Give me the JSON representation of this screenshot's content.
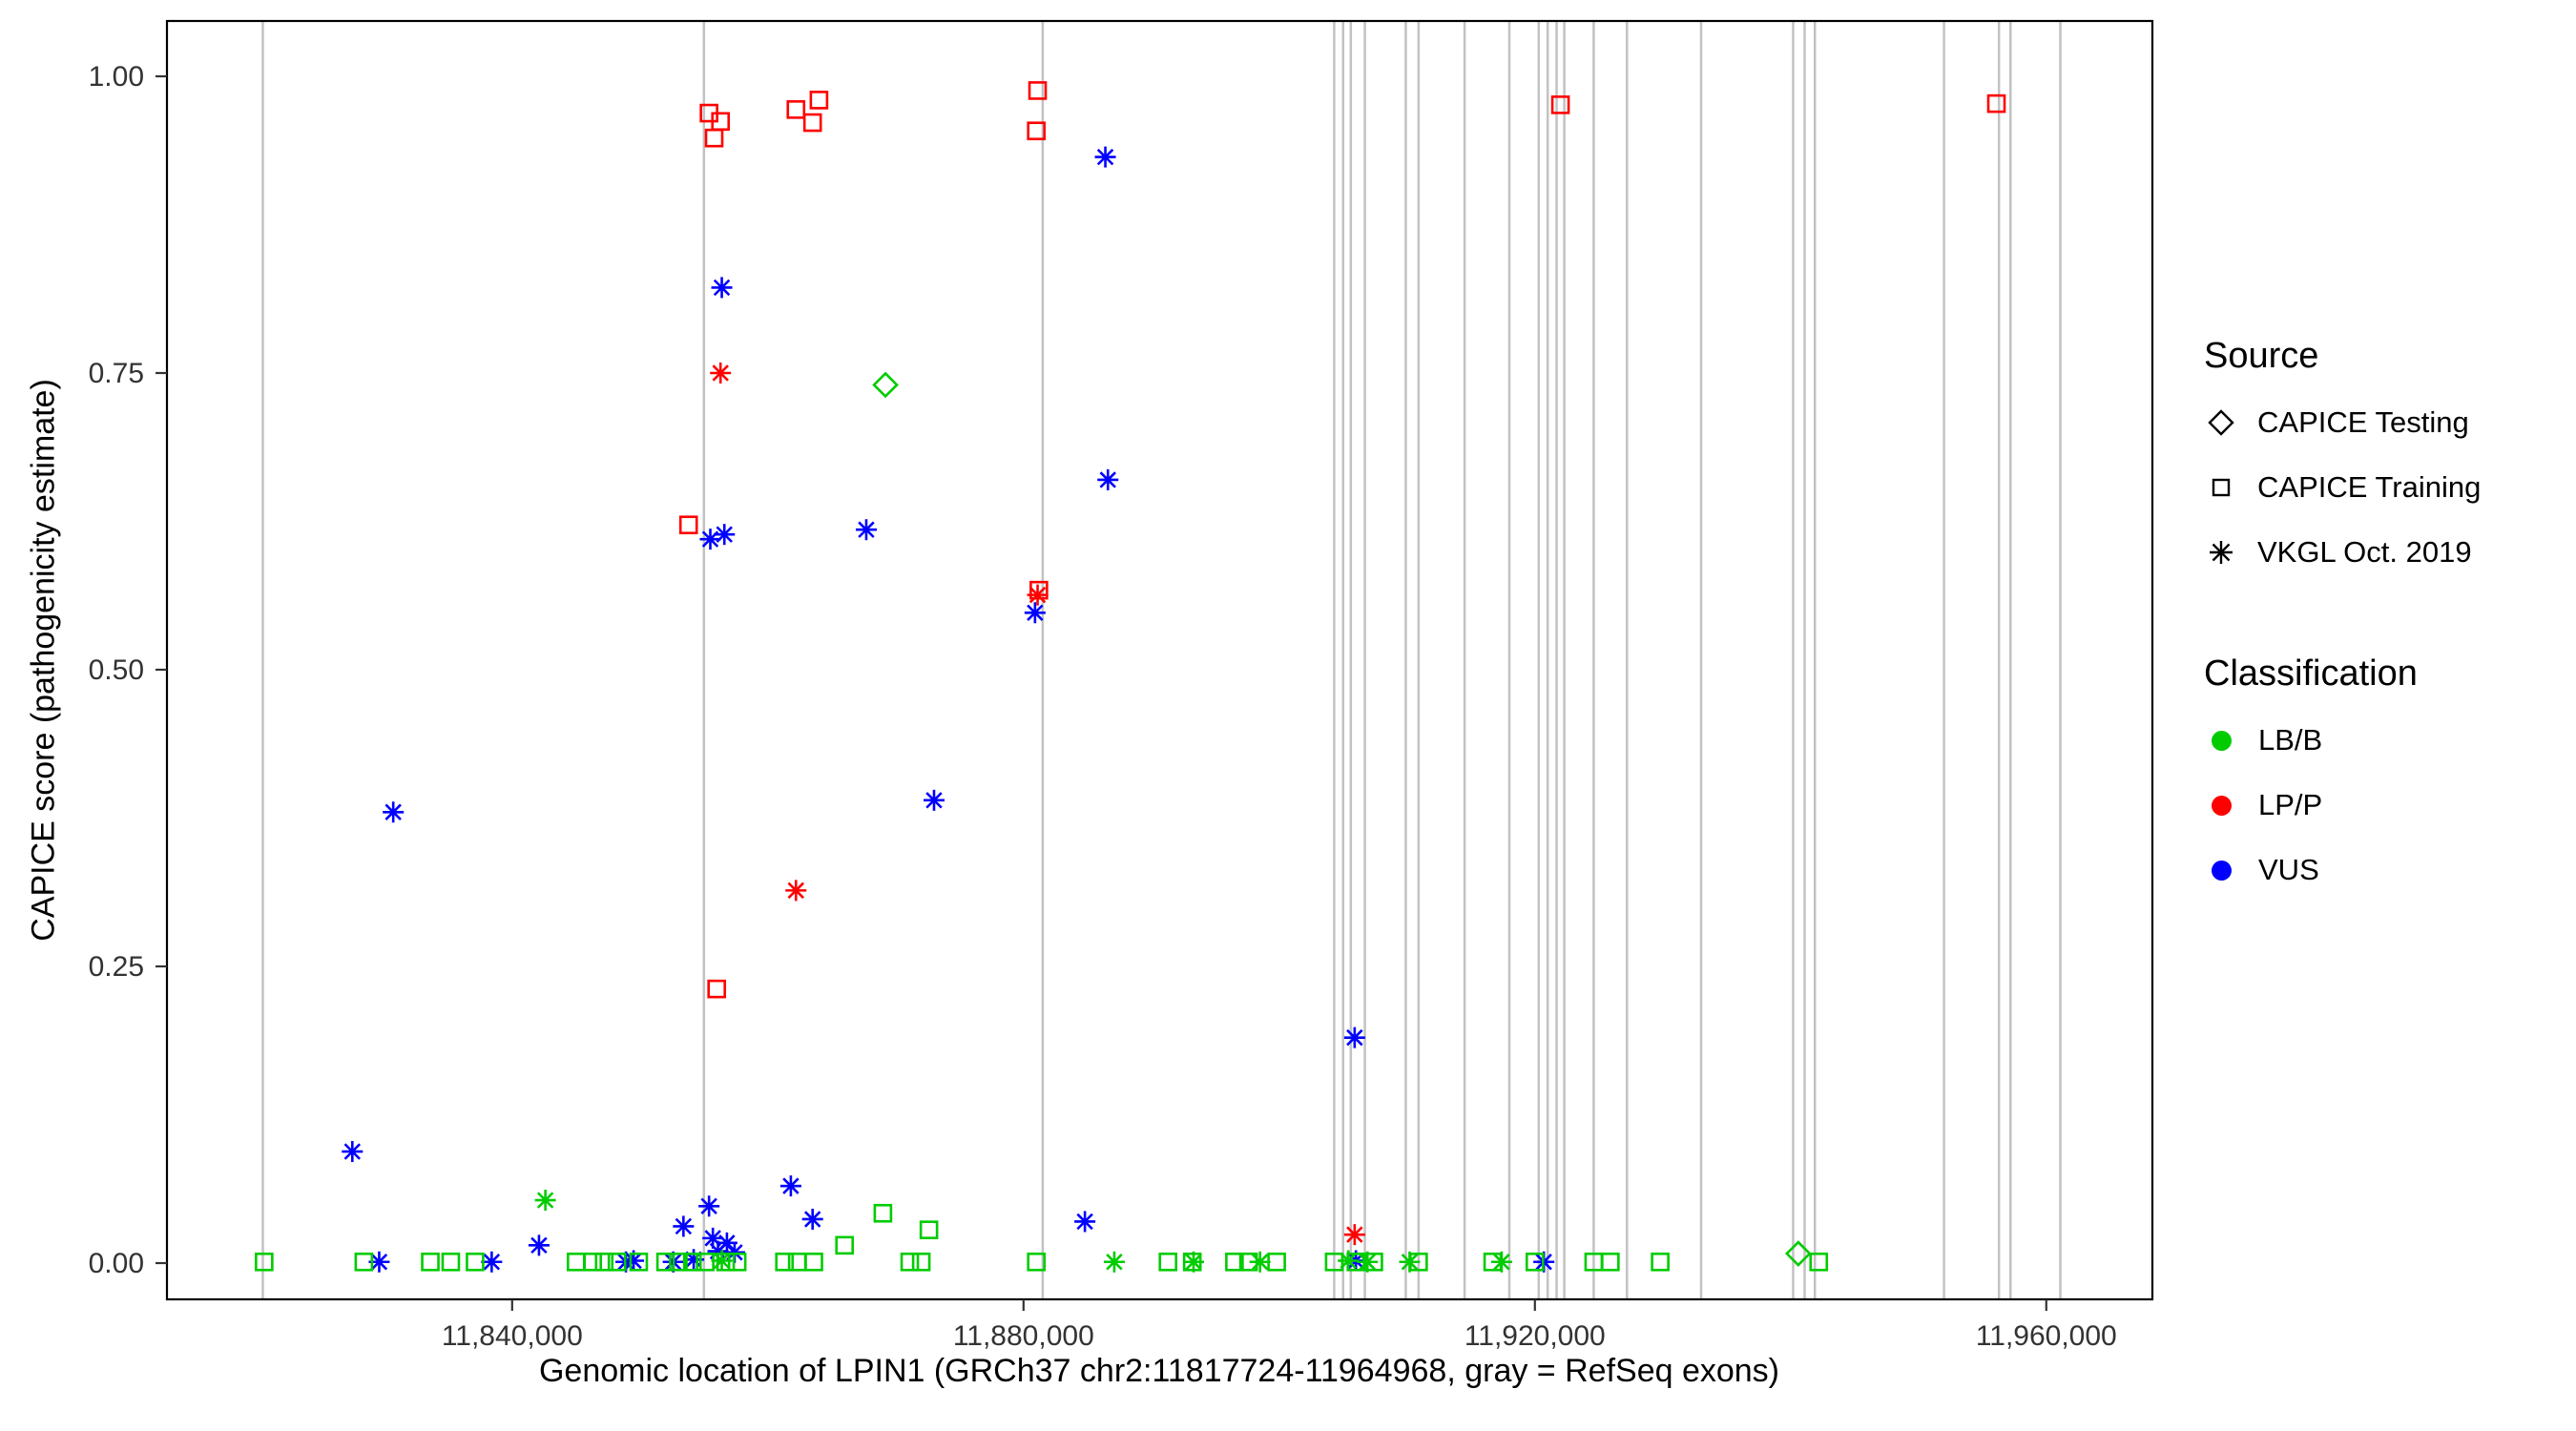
{
  "chart_data": {
    "type": "scatter",
    "title": "",
    "xlabel": "Genomic location of LPIN1 (GRCh37 chr2:11817724-11964968, gray = RefSeq exons)",
    "ylabel": "CAPICE score (pathogenicity estimate)",
    "xlim": [
      11813000,
      11968300
    ],
    "ylim": [
      0,
      1
    ],
    "grid": "off",
    "legend_position": "right",
    "x_ticks": [
      {
        "value": 11840000,
        "label": "11,840,000"
      },
      {
        "value": 11880000,
        "label": "11,880,000"
      },
      {
        "value": 11920000,
        "label": "11,920,000"
      },
      {
        "value": 11960000,
        "label": "11,960,000"
      }
    ],
    "y_ticks": [
      {
        "value": 0.0,
        "label": "0.00"
      },
      {
        "value": 0.25,
        "label": "0.25"
      },
      {
        "value": 0.5,
        "label": "0.50"
      },
      {
        "value": 0.75,
        "label": "0.75"
      },
      {
        "value": 1.0,
        "label": "1.00"
      }
    ],
    "exon_color": "#c2c2c2",
    "exons_x": [
      11820500,
      11855000,
      11881500,
      11904300,
      11905000,
      11905600,
      11906700,
      11909900,
      11910900,
      11914500,
      11918000,
      11920300,
      11921000,
      11921700,
      11922300,
      11924600,
      11927200,
      11933000,
      11940200,
      11941100,
      11941900,
      11952000,
      11956300,
      11957200,
      11961100
    ],
    "classification_colors": {
      "LB/B": "#00cc00",
      "LP/P": "#ff0000",
      "VUS": "#0000ff"
    },
    "shape_by_source": {
      "CAPICE Testing": "diamond",
      "CAPICE Training": "square",
      "VKGL Oct. 2019": "asterisk"
    },
    "series": [
      {
        "source": "CAPICE Training",
        "class": "LP/P",
        "points": [
          [
            11855400,
            0.969
          ],
          [
            11856300,
            0.962
          ],
          [
            11855800,
            0.948
          ],
          [
            11862200,
            0.972
          ],
          [
            11864000,
            0.98
          ],
          [
            11863500,
            0.961
          ],
          [
            11881100,
            0.988
          ],
          [
            11881000,
            0.954
          ],
          [
            11922000,
            0.976
          ],
          [
            11956100,
            0.977
          ],
          [
            11853800,
            0.622
          ],
          [
            11881200,
            0.567
          ],
          [
            11856000,
            0.231
          ]
        ]
      },
      {
        "source": "VKGL Oct. 2019",
        "class": "LP/P",
        "points": [
          [
            11856300,
            0.75
          ],
          [
            11862200,
            0.314
          ],
          [
            11881100,
            0.563
          ],
          [
            11905900,
            0.024
          ]
        ]
      },
      {
        "source": "CAPICE Testing",
        "class": "LB/B",
        "points": [
          [
            11869200,
            0.74
          ],
          [
            11940600,
            0.008
          ]
        ]
      },
      {
        "source": "VKGL Oct. 2019",
        "class": "VUS",
        "points": [
          [
            11856400,
            0.822
          ],
          [
            11886400,
            0.932
          ],
          [
            11886600,
            0.66
          ],
          [
            11867700,
            0.618
          ],
          [
            11855500,
            0.61
          ],
          [
            11856600,
            0.614
          ],
          [
            11880900,
            0.548
          ],
          [
            11873000,
            0.39
          ],
          [
            11830700,
            0.38
          ],
          [
            11905900,
            0.19
          ],
          [
            11827500,
            0.094
          ],
          [
            11861800,
            0.065
          ],
          [
            11855400,
            0.048
          ],
          [
            11863500,
            0.037
          ],
          [
            11884800,
            0.035
          ],
          [
            11853400,
            0.031
          ],
          [
            11855700,
            0.021
          ],
          [
            11856800,
            0.017
          ],
          [
            11842100,
            0.015
          ],
          [
            11856100,
            0.01
          ],
          [
            11857400,
            0.009
          ],
          [
            11829600,
            0.001
          ],
          [
            11838400,
            0.001
          ],
          [
            11848900,
            0.001
          ],
          [
            11849500,
            0.002
          ],
          [
            11852600,
            0.001
          ],
          [
            11854200,
            0.003
          ],
          [
            11906000,
            0.002
          ],
          [
            11920700,
            0.001
          ]
        ]
      },
      {
        "source": "VKGL Oct. 2019",
        "class": "LB/B",
        "points": [
          [
            11842600,
            0.053
          ],
          [
            11856400,
            0.002
          ],
          [
            11887100,
            0.001
          ],
          [
            11893300,
            0.001
          ],
          [
            11898500,
            0.001
          ],
          [
            11905400,
            0.002
          ],
          [
            11906900,
            0.001
          ],
          [
            11910200,
            0.001
          ],
          [
            11917400,
            0.001
          ]
        ]
      },
      {
        "source": "CAPICE Training",
        "class": "LB/B",
        "points": [
          [
            11869000,
            0.042
          ],
          [
            11872600,
            0.028
          ],
          [
            11866000,
            0.015
          ],
          [
            11820600,
            0.001
          ],
          [
            11828400,
            0.001
          ],
          [
            11833600,
            0.001
          ],
          [
            11835200,
            0.001
          ],
          [
            11837100,
            0.001
          ],
          [
            11845000,
            0.001
          ],
          [
            11846300,
            0.001
          ],
          [
            11847200,
            0.001
          ],
          [
            11848200,
            0.001
          ],
          [
            11849900,
            0.001
          ],
          [
            11852000,
            0.001
          ],
          [
            11853000,
            0.001
          ],
          [
            11854100,
            0.001
          ],
          [
            11855100,
            0.001
          ],
          [
            11856700,
            0.001
          ],
          [
            11857600,
            0.001
          ],
          [
            11861300,
            0.001
          ],
          [
            11862300,
            0.001
          ],
          [
            11863600,
            0.001
          ],
          [
            11871100,
            0.001
          ],
          [
            11872000,
            0.001
          ],
          [
            11881000,
            0.001
          ],
          [
            11891300,
            0.001
          ],
          [
            11893200,
            0.001
          ],
          [
            11896500,
            0.001
          ],
          [
            11897600,
            0.001
          ],
          [
            11899800,
            0.001
          ],
          [
            11904300,
            0.001
          ],
          [
            11906000,
            0.001
          ],
          [
            11907400,
            0.001
          ],
          [
            11910900,
            0.001
          ],
          [
            11916700,
            0.001
          ],
          [
            11920000,
            0.001
          ],
          [
            11924600,
            0.001
          ],
          [
            11925900,
            0.001
          ],
          [
            11929800,
            0.001
          ],
          [
            11942200,
            0.001
          ]
        ]
      }
    ]
  },
  "legend": {
    "source": {
      "title": "Source",
      "items": [
        {
          "shape": "diamond",
          "label": "CAPICE Testing"
        },
        {
          "shape": "square",
          "label": "CAPICE Training"
        },
        {
          "shape": "asterisk",
          "label": "VKGL Oct. 2019"
        }
      ]
    },
    "classification": {
      "title": "Classification",
      "items": [
        {
          "label": "LB/B",
          "color": "#00cc00"
        },
        {
          "label": "LP/P",
          "color": "#ff0000"
        },
        {
          "label": "VUS",
          "color": "#0000ff"
        }
      ]
    }
  }
}
